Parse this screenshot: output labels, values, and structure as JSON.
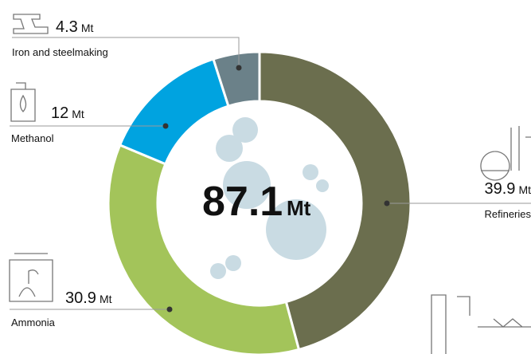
{
  "chart_data": {
    "type": "donut",
    "categories": [
      "Refineries",
      "Ammonia",
      "Methanol",
      "Iron and steelmaking"
    ],
    "values": [
      39.9,
      30.9,
      12,
      4.3
    ],
    "colors": [
      "#6b6e4e",
      "#a3c45a",
      "#00a3e0",
      "#6b8189"
    ],
    "total": 87.1,
    "unit": "Mt"
  }
}
